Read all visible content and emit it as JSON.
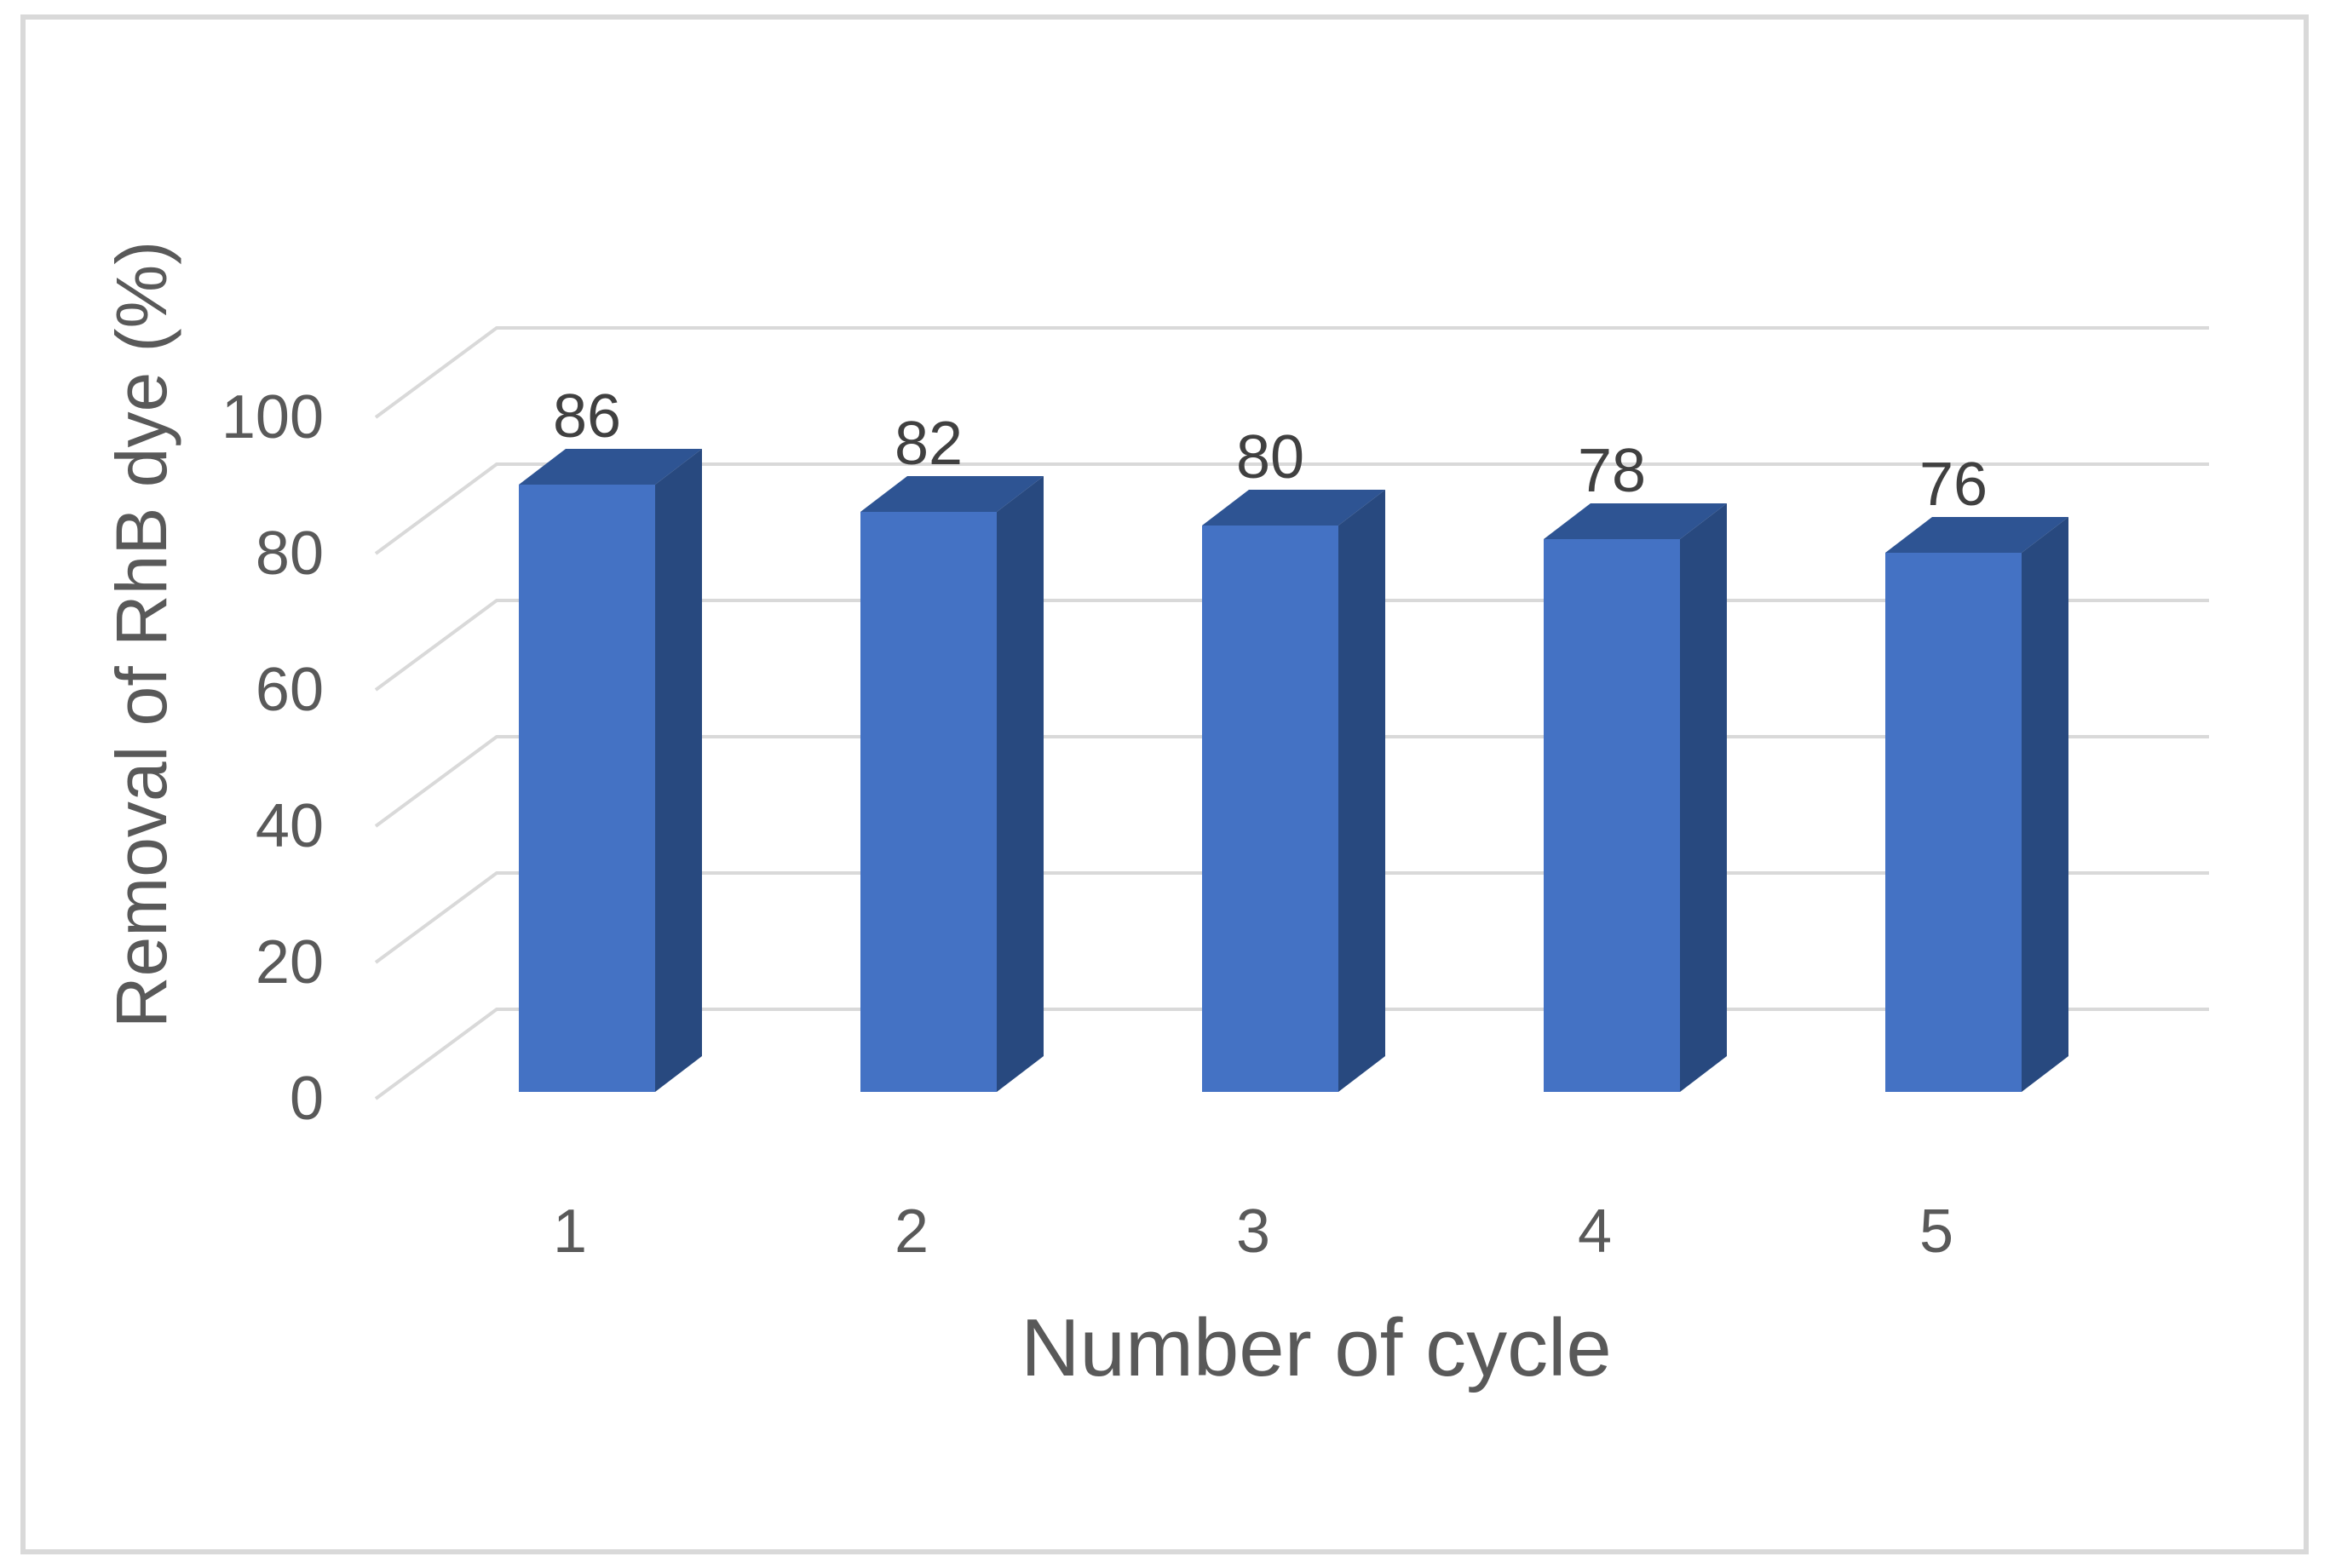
{
  "chart_data": {
    "type": "bar",
    "style": "3d-clustered-column",
    "title": "",
    "xlabel": "Number of cycle",
    "ylabel": "Removal of RhB dye (%)",
    "categories": [
      "1",
      "2",
      "3",
      "4",
      "5"
    ],
    "series": [
      {
        "name": "Removal of RhB dye (%)",
        "values": [
          86,
          82,
          80,
          78,
          76
        ]
      }
    ],
    "data_labels": [
      "86",
      "82",
      "80",
      "78",
      "76"
    ],
    "ylim": [
      0,
      100
    ],
    "yticks": [
      0,
      20,
      40,
      60,
      80,
      100
    ],
    "ytick_labels": [
      "0",
      "20",
      "40",
      "60",
      "80",
      "100"
    ],
    "grid": true,
    "legend_position": "none",
    "colors": {
      "bar_front": "#4472C4",
      "bar_top": "#2E5493",
      "bar_side": "#28497F",
      "gridline": "#D9D9D9",
      "axis_text": "#595959",
      "data_label_text": "#404040",
      "frame_border": "#D9D9D9",
      "background": "#FFFFFF"
    }
  }
}
